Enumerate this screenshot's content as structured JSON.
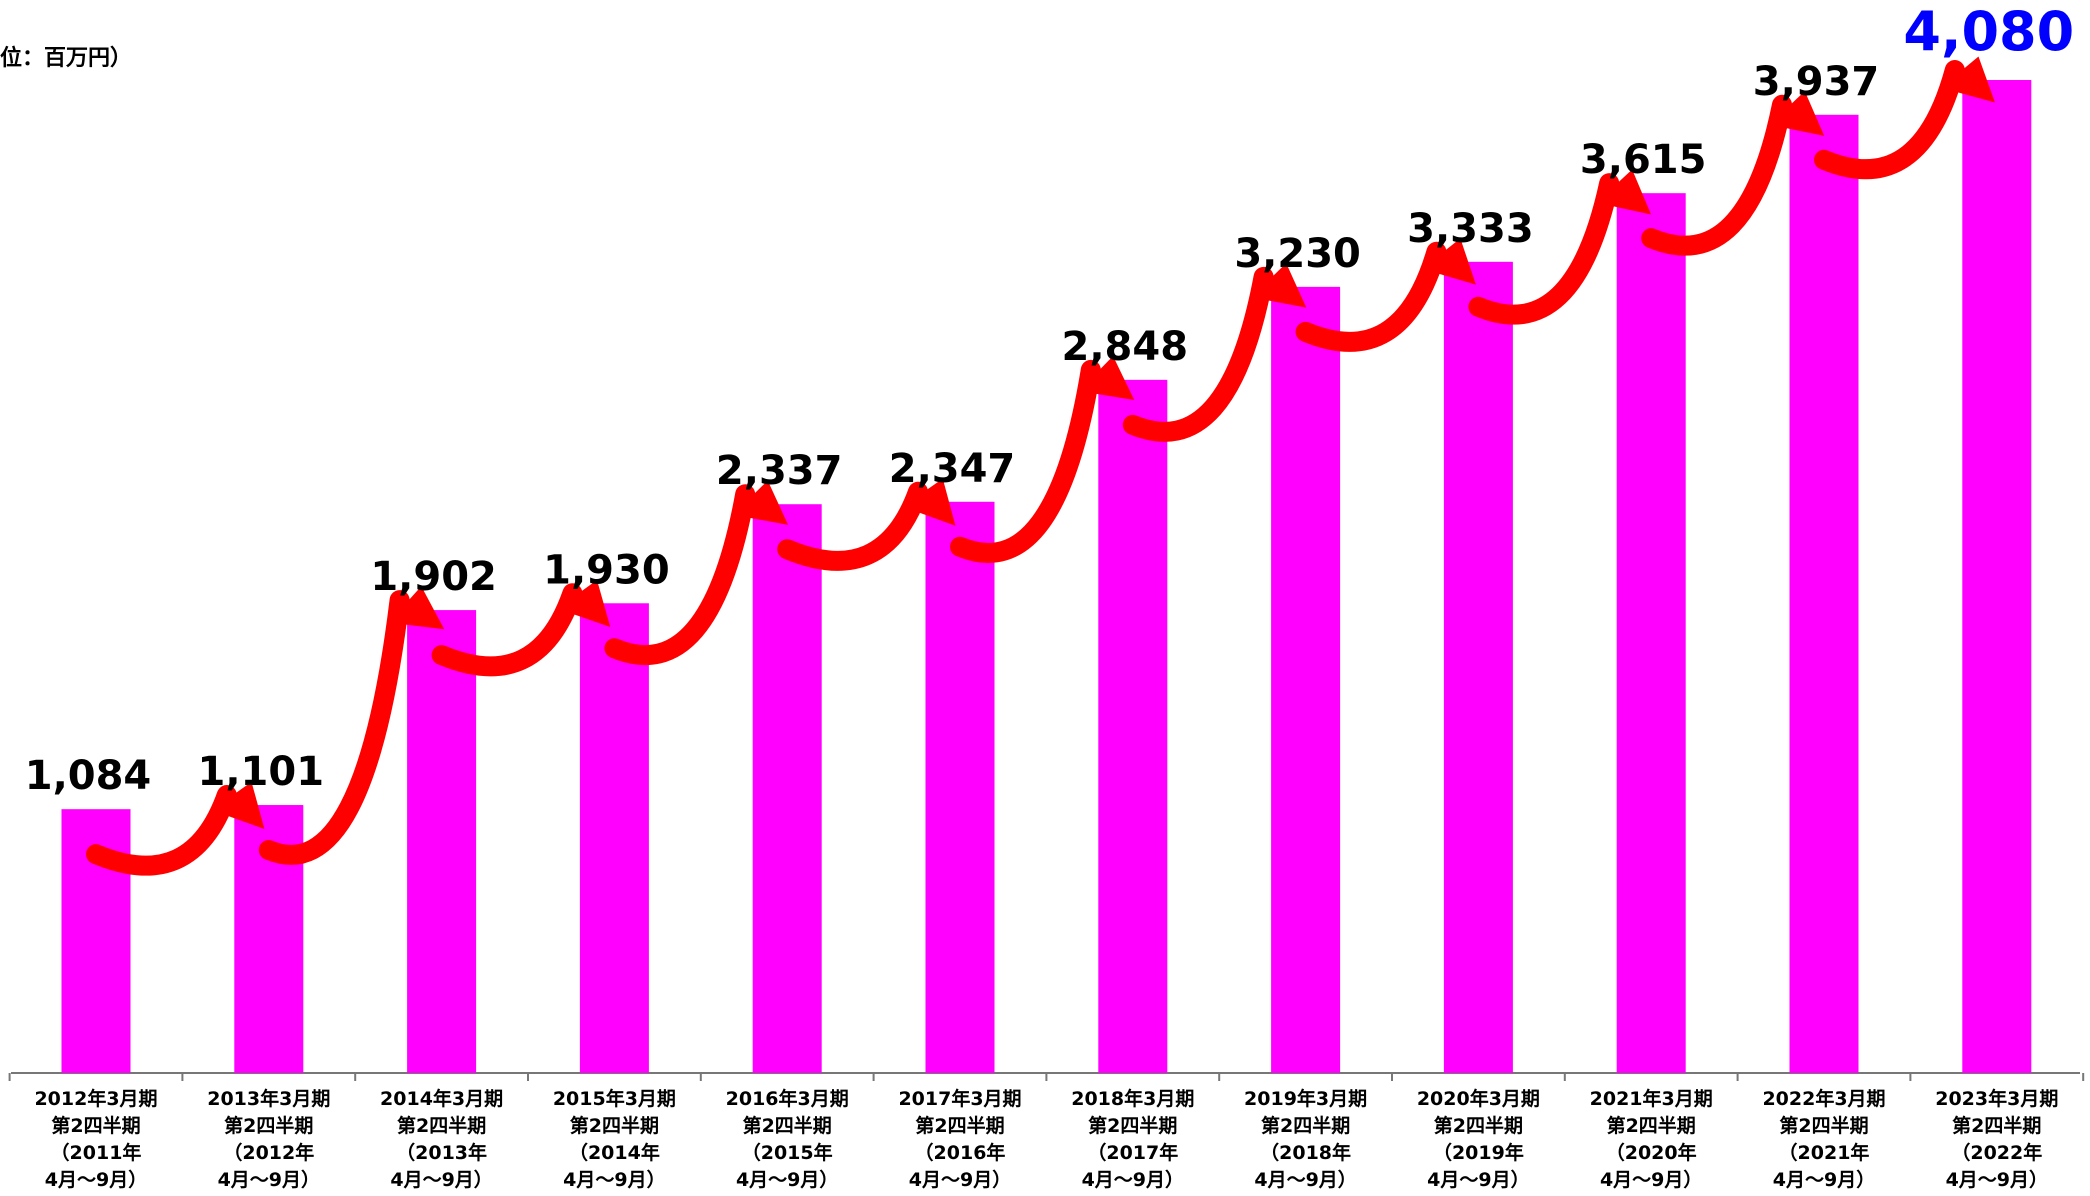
{
  "chart_data": {
    "type": "bar",
    "unit_label": "位：百万円）",
    "categories": [
      "2012年3月期\n第2四半期\n（2011年\n4月～9月）",
      "2013年3月期\n第2四半期\n（2012年\n4月～9月）",
      "2014年3月期\n第2四半期\n（2013年\n4月～9月）",
      "2015年3月期\n第2四半期\n（2014年\n4月～9月）",
      "2016年3月期\n第2四半期\n（2015年\n4月～9月）",
      "2017年3月期\n第2四半期\n（2016年\n4月～9月）",
      "2018年3月期\n第2四半期\n（2017年\n4月～9月）",
      "2019年3月期\n第2四半期\n（2018年\n4月～9月）",
      "2020年3月期\n第2四半期\n（2019年\n4月～9月）",
      "2021年3月期\n第2四半期\n（2020年\n4月～9月）",
      "2022年3月期\n第2四半期\n（2021年\n4月～9月）",
      "2023年3月期\n第2四半期\n（2022年\n4月～9月）"
    ],
    "values": [
      1084,
      1101,
      1902,
      1930,
      2337,
      2347,
      2848,
      3230,
      3333,
      3615,
      3937,
      4080
    ],
    "value_labels": [
      "1,084",
      "1,101",
      "1,902",
      "1,930",
      "2,337",
      "2,347",
      "2,848",
      "3,230",
      "3,333",
      "3,615",
      "3,937",
      "4,080"
    ],
    "color": "#ff00ff",
    "value_label_color": "#000000",
    "highlight_color": "#0000ff",
    "arrow_color": "#ff0000"
  }
}
